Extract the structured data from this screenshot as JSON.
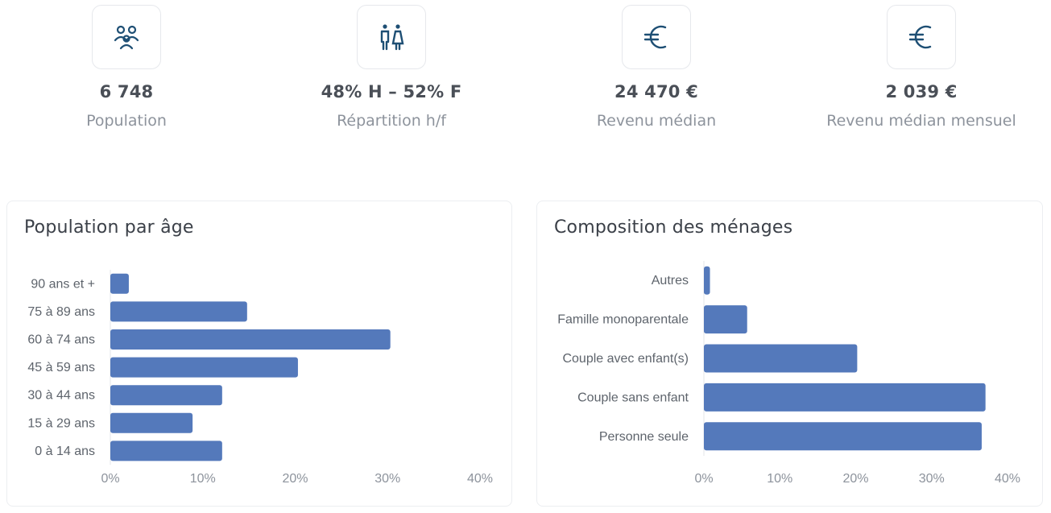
{
  "stats": [
    {
      "icon": "people-icon",
      "value": "6 748",
      "label": "Population"
    },
    {
      "icon": "gender-icon",
      "value": "48% H – 52% F",
      "label": "Répartition h/f"
    },
    {
      "icon": "euro-icon",
      "value": "24 470 €",
      "label": "Revenu médian"
    },
    {
      "icon": "euro-icon",
      "value": "2 039 €",
      "label": "Revenu médian mensuel"
    }
  ],
  "colors": {
    "bar": "#5479bb",
    "icon": "#1e4f74"
  },
  "chart_data": [
    {
      "type": "bar",
      "orientation": "horizontal",
      "title": "Population par âge",
      "categories": [
        "90 ans et +",
        "75 à 89 ans",
        "60 à 74 ans",
        "45 à 59 ans",
        "30 à 44 ans",
        "15 à 29 ans",
        "0 à 14 ans"
      ],
      "values": [
        2,
        14.8,
        30.3,
        20.3,
        12.1,
        8.9,
        12.1
      ],
      "xlim": [
        0,
        40
      ],
      "xticks": [
        "0%",
        "10%",
        "20%",
        "30%",
        "40%"
      ],
      "grid": false
    },
    {
      "type": "bar",
      "orientation": "horizontal",
      "title": "Composition des ménages",
      "categories": [
        "Autres",
        "Famille monoparentale",
        "Couple avec enfant(s)",
        "Couple sans enfant",
        "Personne seule"
      ],
      "values": [
        0.8,
        5.7,
        20.2,
        37.1,
        36.6
      ],
      "xlim": [
        0,
        40
      ],
      "xticks": [
        "0%",
        "10%",
        "20%",
        "30%",
        "40%"
      ],
      "grid": false
    }
  ]
}
